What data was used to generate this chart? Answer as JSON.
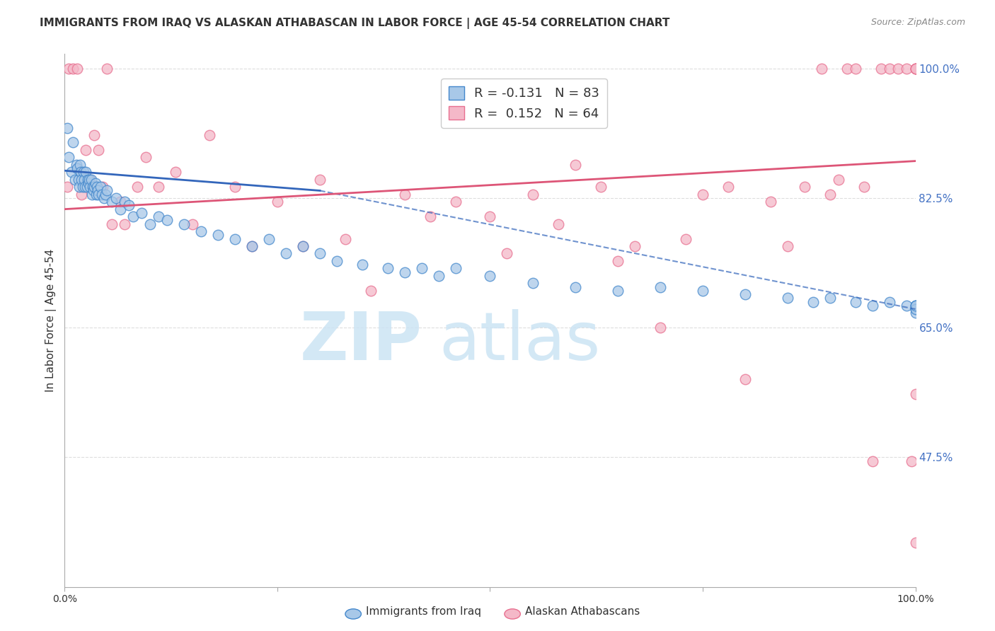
{
  "title": "IMMIGRANTS FROM IRAQ VS ALASKAN ATHABASCAN IN LABOR FORCE | AGE 45-54 CORRELATION CHART",
  "source": "Source: ZipAtlas.com",
  "ylabel": "In Labor Force | Age 45-54",
  "right_yticks": [
    47.5,
    65.0,
    82.5,
    100.0
  ],
  "right_ytick_labels": [
    "47.5%",
    "65.0%",
    "82.5%",
    "100.0%"
  ],
  "legend_blue_r": "R = -0.131",
  "legend_blue_n": "N = 83",
  "legend_pink_r": "R =  0.152",
  "legend_pink_n": "N = 64",
  "blue_color": "#a8c8e8",
  "pink_color": "#f4b8c8",
  "blue_edge_color": "#4488cc",
  "pink_edge_color": "#e87090",
  "blue_line_color": "#3366bb",
  "pink_line_color": "#dd5577",
  "n_blue_color": "#2255cc",
  "n_pink_color": "#cc3366",
  "watermark_zip": "ZIP",
  "watermark_atlas": "atlas",
  "blue_scatter_x": [
    0.3,
    0.5,
    0.8,
    1.0,
    1.2,
    1.4,
    1.5,
    1.6,
    1.7,
    1.8,
    1.9,
    2.0,
    2.1,
    2.2,
    2.3,
    2.4,
    2.5,
    2.6,
    2.7,
    2.8,
    2.9,
    3.0,
    3.1,
    3.2,
    3.3,
    3.4,
    3.5,
    3.6,
    3.7,
    3.8,
    3.9,
    4.0,
    4.2,
    4.4,
    4.6,
    4.8,
    5.0,
    5.5,
    6.0,
    6.5,
    7.0,
    7.5,
    8.0,
    9.0,
    10.0,
    11.0,
    12.0,
    14.0,
    16.0,
    18.0,
    20.0,
    22.0,
    24.0,
    26.0,
    28.0,
    30.0,
    32.0,
    35.0,
    38.0,
    40.0,
    42.0,
    44.0,
    46.0,
    50.0,
    55.0,
    60.0,
    65.0,
    70.0,
    75.0,
    80.0,
    85.0,
    88.0,
    90.0,
    93.0,
    95.0,
    97.0,
    99.0,
    100.0,
    100.0,
    100.0,
    100.0,
    100.0,
    100.0
  ],
  "blue_scatter_y": [
    92.0,
    88.0,
    86.0,
    90.0,
    85.0,
    87.0,
    86.5,
    85.0,
    84.0,
    87.0,
    86.0,
    85.0,
    84.0,
    86.0,
    85.0,
    84.0,
    86.0,
    84.0,
    85.0,
    84.5,
    85.0,
    84.0,
    85.0,
    83.0,
    84.0,
    83.5,
    84.0,
    84.5,
    83.0,
    84.0,
    83.5,
    83.0,
    84.0,
    83.0,
    82.5,
    83.0,
    83.5,
    82.0,
    82.5,
    81.0,
    82.0,
    81.5,
    80.0,
    80.5,
    79.0,
    80.0,
    79.5,
    79.0,
    78.0,
    77.5,
    77.0,
    76.0,
    77.0,
    75.0,
    76.0,
    75.0,
    74.0,
    73.5,
    73.0,
    72.5,
    73.0,
    72.0,
    73.0,
    72.0,
    71.0,
    70.5,
    70.0,
    70.5,
    70.0,
    69.5,
    69.0,
    68.5,
    69.0,
    68.5,
    68.0,
    68.5,
    68.0,
    67.5,
    68.0,
    67.0,
    68.0,
    67.5,
    68.0
  ],
  "pink_scatter_x": [
    0.3,
    0.5,
    1.0,
    1.5,
    2.0,
    2.5,
    3.0,
    3.5,
    4.0,
    4.5,
    5.0,
    5.5,
    6.5,
    7.0,
    8.5,
    9.5,
    11.0,
    13.0,
    15.0,
    17.0,
    20.0,
    22.0,
    25.0,
    28.0,
    30.0,
    33.0,
    36.0,
    40.0,
    43.0,
    46.0,
    50.0,
    52.0,
    55.0,
    58.0,
    60.0,
    63.0,
    65.0,
    67.0,
    70.0,
    73.0,
    75.0,
    78.0,
    80.0,
    83.0,
    85.0,
    87.0,
    89.0,
    90.0,
    91.0,
    92.0,
    93.0,
    94.0,
    95.0,
    96.0,
    97.0,
    98.0,
    99.0,
    99.5,
    100.0,
    100.0,
    100.0,
    100.0,
    100.0,
    100.0
  ],
  "pink_scatter_y": [
    84.0,
    100.0,
    100.0,
    100.0,
    83.0,
    89.0,
    85.0,
    91.0,
    89.0,
    84.0,
    100.0,
    79.0,
    82.0,
    79.0,
    84.0,
    88.0,
    84.0,
    86.0,
    79.0,
    91.0,
    84.0,
    76.0,
    82.0,
    76.0,
    85.0,
    77.0,
    70.0,
    83.0,
    80.0,
    82.0,
    80.0,
    75.0,
    83.0,
    79.0,
    87.0,
    84.0,
    74.0,
    76.0,
    65.0,
    77.0,
    83.0,
    84.0,
    58.0,
    82.0,
    76.0,
    84.0,
    100.0,
    83.0,
    85.0,
    100.0,
    100.0,
    84.0,
    47.0,
    100.0,
    100.0,
    100.0,
    100.0,
    47.0,
    100.0,
    100.0,
    100.0,
    56.0,
    100.0,
    36.0
  ],
  "xmin": 0.0,
  "xmax": 100.0,
  "ymin": 30.0,
  "ymax": 102.0,
  "blue_solid_x0": 0.0,
  "blue_solid_y0": 86.2,
  "blue_solid_x1": 30.0,
  "blue_solid_y1": 83.5,
  "blue_dash_x0": 30.0,
  "blue_dash_y0": 83.5,
  "blue_dash_x1": 100.0,
  "blue_dash_y1": 67.5,
  "pink_trend_x0": 0.0,
  "pink_trend_y0": 81.0,
  "pink_trend_x1": 100.0,
  "pink_trend_y1": 87.5,
  "grid_color": "#dddddd",
  "background_color": "#ffffff",
  "title_fontsize": 11,
  "axis_label_color": "#333333",
  "right_tick_color": "#4472c4"
}
